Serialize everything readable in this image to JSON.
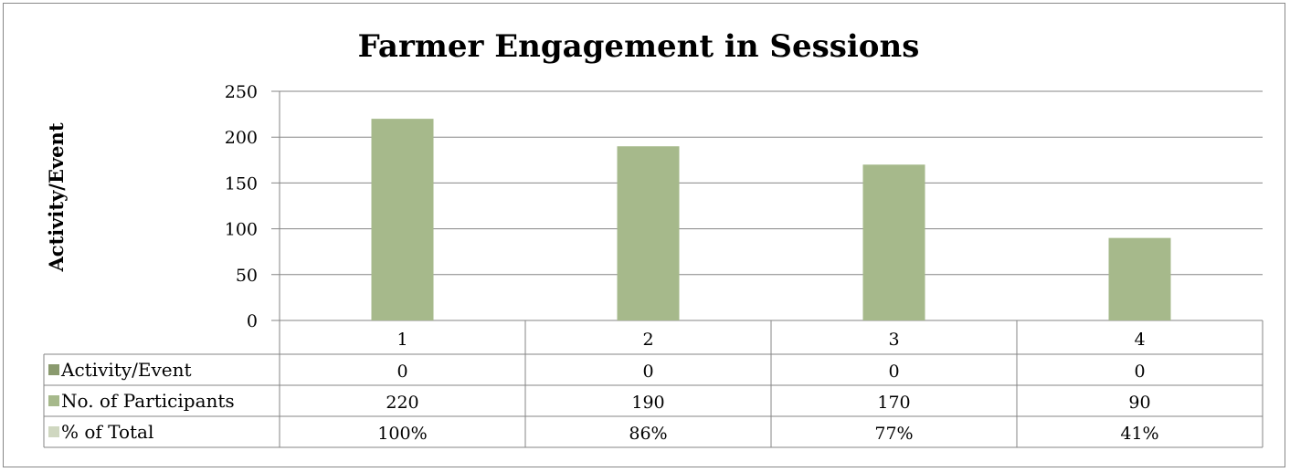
{
  "chart_data": {
    "type": "bar",
    "title": "Farmer Engagement in Sessions",
    "ylabel": "Activity/Event",
    "xlabel": "",
    "ylim": [
      0,
      250
    ],
    "yticks": [
      0,
      50,
      100,
      150,
      200,
      250
    ],
    "grid": true,
    "legend": "data-table",
    "categories": [
      "1",
      "2",
      "3",
      "4"
    ],
    "series": [
      {
        "name": "Activity/Event",
        "values": [
          0,
          0,
          0,
          0
        ],
        "color": "#8a9a6e",
        "labels": [
          "0",
          "0",
          "0",
          "0"
        ]
      },
      {
        "name": "No. of Participants",
        "values": [
          220,
          190,
          170,
          90
        ],
        "color": "#a6b98b",
        "labels": [
          "220",
          "190",
          "170",
          "90"
        ]
      },
      {
        "name": "% of Total",
        "values": [
          100,
          86,
          77,
          41
        ],
        "color": "#cfd7c0",
        "labels": [
          "100%",
          "86%",
          "77%",
          "41%"
        ]
      }
    ]
  }
}
